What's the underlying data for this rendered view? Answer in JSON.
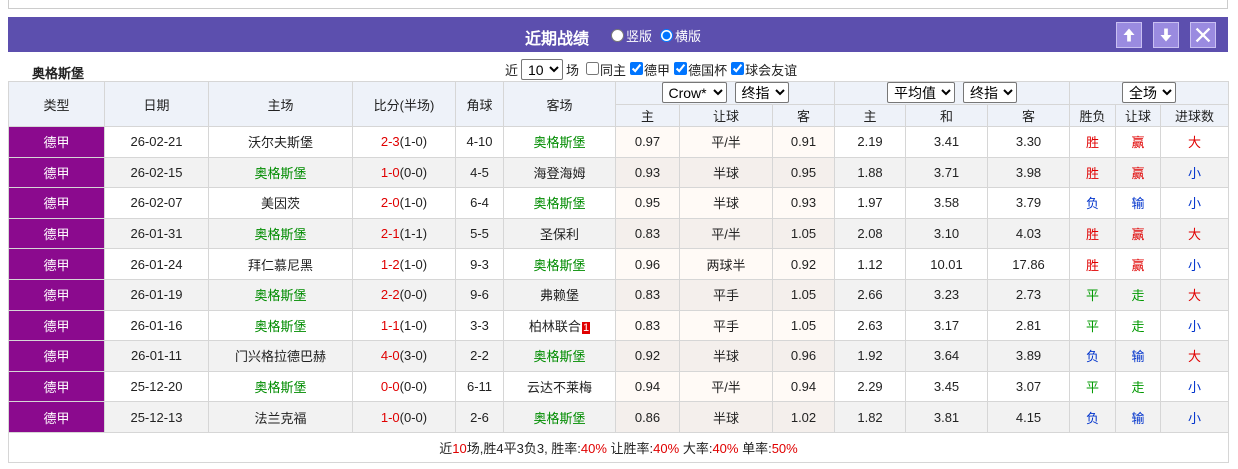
{
  "top_bar": {
    "title": "近期战绩",
    "layouts": [
      {
        "label": "竖版",
        "checked": false
      },
      {
        "label": "横版",
        "checked": true
      }
    ]
  },
  "filter": {
    "team": "奥格斯堡",
    "recent_prefix": "近",
    "recent_count": "10",
    "recent_suffix": "场",
    "options": [
      {
        "label": "同主",
        "checked": false
      },
      {
        "label": "德甲",
        "checked": true
      },
      {
        "label": "德国杯",
        "checked": true
      },
      {
        "label": "球会友谊",
        "checked": true
      }
    ]
  },
  "table": {
    "headers": [
      "类型",
      "日期",
      "主场",
      "比分(半场)",
      "角球",
      "客场"
    ],
    "odds_selects": [
      "Crow*",
      "终指"
    ],
    "avg_selects": [
      "平均值",
      "终指"
    ],
    "result_select": "全场",
    "subheaders": [
      "主",
      "让球",
      "客",
      "主",
      "和",
      "客",
      "胜负",
      "让球",
      "进球数"
    ],
    "result_colors": {
      "胜": "#e00000",
      "赢": "#e00000",
      "大": "#e00000",
      "负": "#0033cc",
      "输": "#0033cc",
      "小": "#0033cc",
      "平": "#009900",
      "走": "#009900"
    },
    "rows": [
      {
        "league": "德甲",
        "date": "26-02-21",
        "home": "沃尔夫斯堡",
        "score": "2-3",
        "half": "(1-0)",
        "corners": "4-10",
        "away": "奥格斯堡",
        "odds_home": "0.97",
        "handicap": "平/半",
        "odds_away": "0.91",
        "avg_home": "2.19",
        "avg_draw": "3.41",
        "avg_away": "3.30",
        "result": "胜",
        "handicap_result": "赢",
        "goals": "大"
      },
      {
        "league": "德甲",
        "date": "26-02-15",
        "home": "奥格斯堡",
        "score": "1-0",
        "half": "(0-0)",
        "corners": "4-5",
        "away": "海登海姆",
        "odds_home": "0.93",
        "handicap": "半球",
        "odds_away": "0.95",
        "avg_home": "1.88",
        "avg_draw": "3.71",
        "avg_away": "3.98",
        "result": "胜",
        "handicap_result": "赢",
        "goals": "小"
      },
      {
        "league": "德甲",
        "date": "26-02-07",
        "home": "美因茨",
        "score": "2-0",
        "half": "(1-0)",
        "corners": "6-4",
        "away": "奥格斯堡",
        "odds_home": "0.95",
        "handicap": "半球",
        "odds_away": "0.93",
        "avg_home": "1.97",
        "avg_draw": "3.58",
        "avg_away": "3.79",
        "result": "负",
        "handicap_result": "输",
        "goals": "小"
      },
      {
        "league": "德甲",
        "date": "26-01-31",
        "home": "奥格斯堡",
        "score": "2-1",
        "half": "(1-1)",
        "corners": "5-5",
        "away": "圣保利",
        "odds_home": "0.83",
        "handicap": "平/半",
        "odds_away": "1.05",
        "avg_home": "2.08",
        "avg_draw": "3.10",
        "avg_away": "4.03",
        "result": "胜",
        "handicap_result": "赢",
        "goals": "大"
      },
      {
        "league": "德甲",
        "date": "26-01-24",
        "home": "拜仁慕尼黑",
        "score": "1-2",
        "half": "(1-0)",
        "corners": "9-3",
        "away": "奥格斯堡",
        "odds_home": "0.96",
        "handicap": "两球半",
        "odds_away": "0.92",
        "avg_home": "1.12",
        "avg_draw": "10.01",
        "avg_away": "17.86",
        "result": "胜",
        "handicap_result": "赢",
        "goals": "小"
      },
      {
        "league": "德甲",
        "date": "26-01-19",
        "home": "奥格斯堡",
        "score": "2-2",
        "half": "(0-0)",
        "corners": "9-6",
        "away": "弗赖堡",
        "odds_home": "0.83",
        "handicap": "平手",
        "odds_away": "1.05",
        "avg_home": "2.66",
        "avg_draw": "3.23",
        "avg_away": "2.73",
        "result": "平",
        "handicap_result": "走",
        "goals": "大"
      },
      {
        "league": "德甲",
        "date": "26-01-16",
        "home": "奥格斯堡",
        "score": "1-1",
        "half": "(1-0)",
        "corners": "3-3",
        "away": "柏林联合",
        "away_red": "1",
        "odds_home": "0.83",
        "handicap": "平手",
        "odds_away": "1.05",
        "avg_home": "2.63",
        "avg_draw": "3.17",
        "avg_away": "2.81",
        "result": "平",
        "handicap_result": "走",
        "goals": "小"
      },
      {
        "league": "德甲",
        "date": "26-01-11",
        "home": "门兴格拉德巴赫",
        "score": "4-0",
        "half": "(3-0)",
        "corners": "2-2",
        "away": "奥格斯堡",
        "odds_home": "0.92",
        "handicap": "半球",
        "odds_away": "0.96",
        "avg_home": "1.92",
        "avg_draw": "3.64",
        "avg_away": "3.89",
        "result": "负",
        "handicap_result": "输",
        "goals": "大"
      },
      {
        "league": "德甲",
        "date": "25-12-20",
        "home": "奥格斯堡",
        "score": "0-0",
        "half": "(0-0)",
        "corners": "6-11",
        "away": "云达不莱梅",
        "odds_home": "0.94",
        "handicap": "平/半",
        "odds_away": "0.94",
        "avg_home": "2.29",
        "avg_draw": "3.45",
        "avg_away": "3.07",
        "result": "平",
        "handicap_result": "走",
        "goals": "小"
      },
      {
        "league": "德甲",
        "date": "25-12-13",
        "home": "法兰克福",
        "score": "1-0",
        "half": "(0-0)",
        "corners": "2-6",
        "away": "奥格斯堡",
        "odds_home": "0.86",
        "handicap": "半球",
        "odds_away": "1.02",
        "avg_home": "1.82",
        "avg_draw": "3.81",
        "avg_away": "4.15",
        "result": "负",
        "handicap_result": "输",
        "goals": "小"
      }
    ],
    "footer": [
      {
        "text": "近"
      },
      {
        "text": "10",
        "color": "#e00000"
      },
      {
        "text": "场,胜4平3负3, 胜率:"
      },
      {
        "text": "40%",
        "color": "#e00000"
      },
      {
        "text": " 让胜率:"
      },
      {
        "text": "40%",
        "color": "#e00000"
      },
      {
        "text": " 大率:"
      },
      {
        "text": "40%",
        "color": "#e00000"
      },
      {
        "text": " 单率:"
      },
      {
        "text": "50%",
        "color": "#e00000"
      }
    ]
  }
}
